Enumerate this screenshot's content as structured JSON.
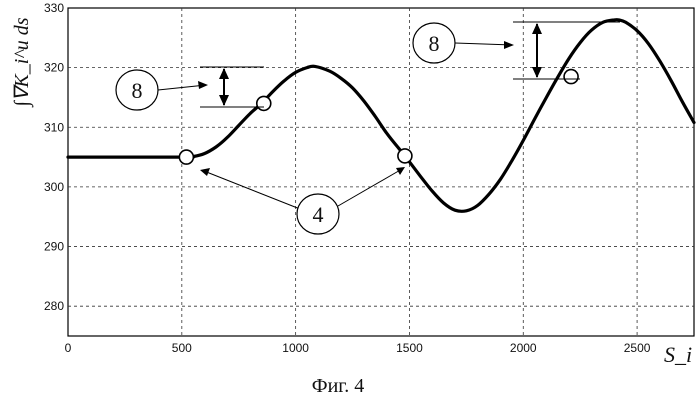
{
  "chart_data": {
    "type": "line",
    "title": "",
    "xlabel": "S_i",
    "ylabel": "∫∇K_i^u ds",
    "xlim": [
      0,
      2750
    ],
    "ylim": [
      275,
      330
    ],
    "x_ticks": [
      0,
      500,
      1000,
      1500,
      2000,
      2500
    ],
    "y_ticks": [
      280,
      290,
      300,
      310,
      320,
      330
    ],
    "grid": true,
    "series": [
      {
        "x": [
          0,
          500,
          550,
          600,
          650,
          700,
          750,
          800,
          850,
          900,
          950,
          1000,
          1050,
          1085,
          1150,
          1200,
          1250,
          1300,
          1350,
          1400,
          1450,
          1480,
          1550,
          1600,
          1650,
          1700,
          1750,
          1800,
          1850,
          1900,
          1950,
          2000,
          2050,
          2100,
          2150,
          2200,
          2250,
          2300,
          2350,
          2400,
          2420,
          2450,
          2500,
          2550,
          2600,
          2650,
          2700,
          2750
        ],
        "y": [
          305,
          305,
          305.1,
          305.6,
          306.7,
          308.3,
          310.3,
          312.3,
          314.0,
          316.0,
          317.8,
          319.2,
          320.0,
          320.2,
          319.4,
          318.2,
          316.6,
          314.4,
          311.8,
          309.0,
          306.6,
          305.2,
          301.7,
          299.3,
          297.3,
          296.1,
          296.0,
          296.9,
          298.8,
          301.3,
          304.4,
          307.8,
          311.4,
          314.9,
          318.3,
          321.5,
          324.2,
          326.3,
          327.6,
          328.0,
          328.0,
          327.6,
          326.2,
          324.0,
          321.1,
          317.8,
          314.2,
          310.8
        ]
      }
    ],
    "markers": [
      {
        "x": 520,
        "y": 305
      },
      {
        "x": 860,
        "y": 314
      },
      {
        "x": 1480,
        "y": 305.2
      },
      {
        "x": 2210,
        "y": 318.5
      }
    ],
    "annotations": [
      {
        "label": "8",
        "points_to": "amplitude between 314 and 321"
      },
      {
        "label": "8",
        "points_to": "amplitude between 318.5 and 328"
      },
      {
        "label": "4",
        "points_to": "markers at x=520 and x=1480"
      }
    ],
    "caption": "Фиг. 4",
    "legend": "none"
  }
}
